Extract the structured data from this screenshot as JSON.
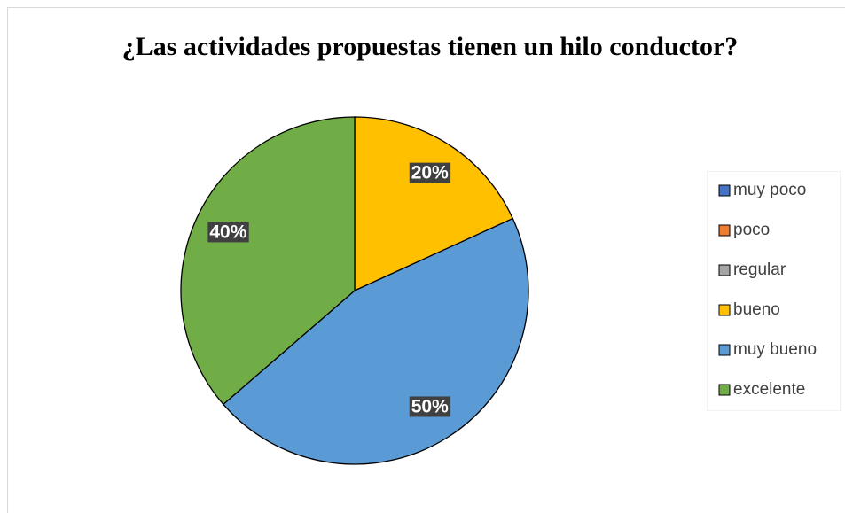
{
  "chart_data": {
    "type": "pie",
    "title": "¿Las actividades propuestas tienen un hilo conductor?",
    "categories": [
      "muy poco",
      "poco",
      "regular",
      "bueno",
      "muy bueno",
      "excelente"
    ],
    "values": [
      0,
      0,
      0,
      20,
      50,
      40
    ],
    "value_labels": [
      null,
      null,
      null,
      "20%",
      "50%",
      "40%"
    ],
    "colors": [
      "#4472c4",
      "#ed7d31",
      "#a5a5a5",
      "#ffc000",
      "#5b9bd5",
      "#70ad47"
    ],
    "legend": "right"
  }
}
